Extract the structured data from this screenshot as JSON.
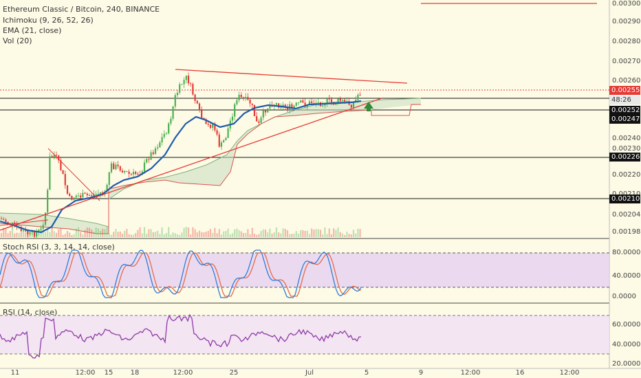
{
  "chart_title": "Ethereum Classic / Bitcoin, 240, BINANCE",
  "indicators": [
    "Ichimoku (9, 26, 52, 26)",
    "EMA (21, close)",
    "Vol (20)"
  ],
  "stoch_title": "Stoch RSI (3, 3, 14, 14, close)",
  "rsi_title": "RSI (14, close)",
  "colors": {
    "background": "#fdfbe6",
    "candle_up": "#4caf50",
    "candle_down": "#e53935",
    "ema": "#1e5aa8",
    "trendline": "#e53935",
    "stoch_k": "#2e7bd8",
    "stoch_d": "#e26a4a",
    "rsi": "#8e3aa8",
    "stoch_band": "#e3ccf2",
    "rsi_band": "#f1e0f3"
  },
  "price_axis": {
    "labels": [
      "0.003000",
      "0.002900",
      "0.002800",
      "0.002700",
      "0.002600",
      "0.002400",
      "0.002300",
      "0.002200",
      "0.002100",
      "0.002040",
      "0.001980"
    ],
    "highlighted": [
      {
        "value": "0.002557",
        "style": "red"
      },
      {
        "value": "48:26",
        "style": "gray"
      },
      {
        "value": "0.002527",
        "style": "black"
      },
      {
        "value": "0.002470",
        "style": "black"
      },
      {
        "value": "0.002269",
        "style": "black"
      },
      {
        "value": "0.002102",
        "style": "black"
      }
    ]
  },
  "stoch_axis": [
    "80.0000",
    "40.0000",
    "0.0000"
  ],
  "rsi_axis": [
    "60.0000",
    "40.0000",
    "20.0000"
  ],
  "time_axis": [
    "11",
    "12:00",
    "15",
    "18",
    "12:00",
    "25",
    "Jul",
    "5",
    "9",
    "12:00",
    "16",
    "12:00"
  ],
  "arrow_icon": "up-arrow-icon"
}
